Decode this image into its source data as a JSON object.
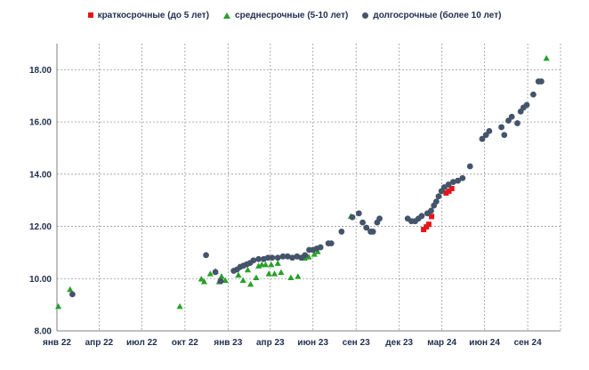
{
  "colors": {
    "short": "#e3161a",
    "medium": "#2aa02a",
    "long": "#44546a",
    "grid": "#999999",
    "axis": "#7f7f7f",
    "text": "#1f2d4d"
  },
  "chart_data": {
    "type": "scatter",
    "title": "",
    "xlabel": "",
    "ylabel": "",
    "x_type": "date",
    "x_range": [
      "2022-01-01",
      "2024-12-10"
    ],
    "ylim": [
      8.0,
      19.0
    ],
    "grid": true,
    "legend_position": "top",
    "x_ticks": [
      {
        "x": "2022-01-01",
        "label": "янв 22"
      },
      {
        "x": "2022-04-01",
        "label": "апр 22"
      },
      {
        "x": "2022-07-01",
        "label": "июл 22"
      },
      {
        "x": "2022-10-01",
        "label": "окт 22"
      },
      {
        "x": "2023-01-01",
        "label": "янв 23"
      },
      {
        "x": "2023-04-01",
        "label": "апр 23"
      },
      {
        "x": "2023-07-01",
        "label": "июн 23"
      },
      {
        "x": "2023-10-01",
        "label": "сен 23"
      },
      {
        "x": "2024-01-01",
        "label": "дек 23"
      },
      {
        "x": "2024-04-01",
        "label": "мар 24"
      },
      {
        "x": "2024-07-01",
        "label": "июн 24"
      },
      {
        "x": "2024-10-01",
        "label": "сен 24"
      }
    ],
    "y_ticks": [
      "8.00",
      "10.00",
      "12.00",
      "14.00",
      "16.00",
      "18.00"
    ],
    "series": [
      {
        "name": "краткосрочные (до 5 лет)",
        "key": "short",
        "marker": "square",
        "points": [
          [
            "2024-02-22",
            11.88
          ],
          [
            "2024-02-28",
            11.98
          ],
          [
            "2024-03-04",
            12.08
          ],
          [
            "2024-03-10",
            12.38
          ],
          [
            "2024-04-10",
            13.28
          ],
          [
            "2024-04-16",
            13.35
          ],
          [
            "2024-04-22",
            13.45
          ]
        ]
      },
      {
        "name": "среднесрочные (5-10 лет)",
        "key": "medium",
        "marker": "triangle",
        "points": [
          [
            "2022-01-04",
            8.95
          ],
          [
            "2022-01-29",
            9.6
          ],
          [
            "2022-09-20",
            8.95
          ],
          [
            "2022-11-05",
            10.0
          ],
          [
            "2022-11-11",
            9.9
          ],
          [
            "2022-11-24",
            10.2
          ],
          [
            "2022-12-05",
            10.3
          ],
          [
            "2022-12-13",
            9.9
          ],
          [
            "2022-12-18",
            10.1
          ],
          [
            "2022-12-26",
            9.95
          ],
          [
            "2023-01-23",
            10.15
          ],
          [
            "2023-02-02",
            9.95
          ],
          [
            "2023-02-12",
            10.35
          ],
          [
            "2023-02-18",
            9.8
          ],
          [
            "2023-03-02",
            10.05
          ],
          [
            "2023-03-07",
            10.5
          ],
          [
            "2023-03-14",
            10.55
          ],
          [
            "2023-03-22",
            10.55
          ],
          [
            "2023-03-29",
            10.2
          ],
          [
            "2023-04-03",
            10.55
          ],
          [
            "2023-04-10",
            10.2
          ],
          [
            "2023-04-17",
            10.6
          ],
          [
            "2023-04-24",
            10.25
          ],
          [
            "2023-05-15",
            10.05
          ],
          [
            "2023-05-30",
            10.1
          ],
          [
            "2023-06-13",
            10.8
          ],
          [
            "2023-06-22",
            10.85
          ],
          [
            "2023-07-04",
            10.95
          ],
          [
            "2023-07-11",
            11.05
          ],
          [
            "2023-09-20",
            12.4
          ],
          [
            "2024-11-10",
            18.45
          ]
        ]
      },
      {
        "name": "долгосрочные (более 10 лет)",
        "key": "long",
        "marker": "circle",
        "points": [
          [
            "2022-02-03",
            9.4
          ],
          [
            "2022-11-15",
            10.9
          ],
          [
            "2022-12-05",
            10.25
          ],
          [
            "2022-12-16",
            9.9
          ],
          [
            "2023-01-13",
            10.3
          ],
          [
            "2023-01-20",
            10.35
          ],
          [
            "2023-01-27",
            10.45
          ],
          [
            "2023-02-03",
            10.5
          ],
          [
            "2023-02-10",
            10.55
          ],
          [
            "2023-02-17",
            10.6
          ],
          [
            "2023-02-24",
            10.7
          ],
          [
            "2023-03-07",
            10.75
          ],
          [
            "2023-03-18",
            10.75
          ],
          [
            "2023-03-27",
            10.8
          ],
          [
            "2023-04-05",
            10.8
          ],
          [
            "2023-04-17",
            10.8
          ],
          [
            "2023-04-28",
            10.85
          ],
          [
            "2023-05-08",
            10.85
          ],
          [
            "2023-05-18",
            10.8
          ],
          [
            "2023-05-28",
            10.85
          ],
          [
            "2023-06-06",
            10.8
          ],
          [
            "2023-06-14",
            10.9
          ],
          [
            "2023-06-23",
            11.1
          ],
          [
            "2023-07-01",
            11.1
          ],
          [
            "2023-07-09",
            11.15
          ],
          [
            "2023-07-17",
            11.2
          ],
          [
            "2023-08-03",
            11.35
          ],
          [
            "2023-08-09",
            11.35
          ],
          [
            "2023-08-31",
            11.8
          ],
          [
            "2023-09-23",
            12.35
          ],
          [
            "2023-10-07",
            12.5
          ],
          [
            "2023-10-15",
            12.15
          ],
          [
            "2023-10-23",
            11.95
          ],
          [
            "2023-11-01",
            11.8
          ],
          [
            "2023-11-06",
            11.8
          ],
          [
            "2023-11-15",
            12.15
          ],
          [
            "2023-11-20",
            12.3
          ],
          [
            "2024-01-19",
            12.3
          ],
          [
            "2024-01-27",
            12.2
          ],
          [
            "2024-02-04",
            12.2
          ],
          [
            "2024-02-11",
            12.3
          ],
          [
            "2024-02-18",
            12.4
          ],
          [
            "2024-03-01",
            12.5
          ],
          [
            "2024-03-09",
            12.6
          ],
          [
            "2024-03-15",
            12.8
          ],
          [
            "2024-03-20",
            12.95
          ],
          [
            "2024-03-25",
            13.15
          ],
          [
            "2024-03-31",
            13.35
          ],
          [
            "2024-04-06",
            13.5
          ],
          [
            "2024-04-15",
            13.6
          ],
          [
            "2024-04-25",
            13.7
          ],
          [
            "2024-05-05",
            13.75
          ],
          [
            "2024-05-15",
            13.85
          ],
          [
            "2024-05-31",
            14.3
          ],
          [
            "2024-06-26",
            15.35
          ],
          [
            "2024-07-04",
            15.5
          ],
          [
            "2024-07-11",
            15.65
          ],
          [
            "2024-08-06",
            15.8
          ],
          [
            "2024-08-12",
            15.5
          ],
          [
            "2024-08-21",
            16.05
          ],
          [
            "2024-08-28",
            16.2
          ],
          [
            "2024-09-09",
            15.95
          ],
          [
            "2024-09-16",
            16.4
          ],
          [
            "2024-09-22",
            16.55
          ],
          [
            "2024-09-29",
            16.65
          ],
          [
            "2024-10-13",
            17.05
          ],
          [
            "2024-10-24",
            17.55
          ],
          [
            "2024-10-30",
            17.55
          ]
        ]
      }
    ]
  }
}
